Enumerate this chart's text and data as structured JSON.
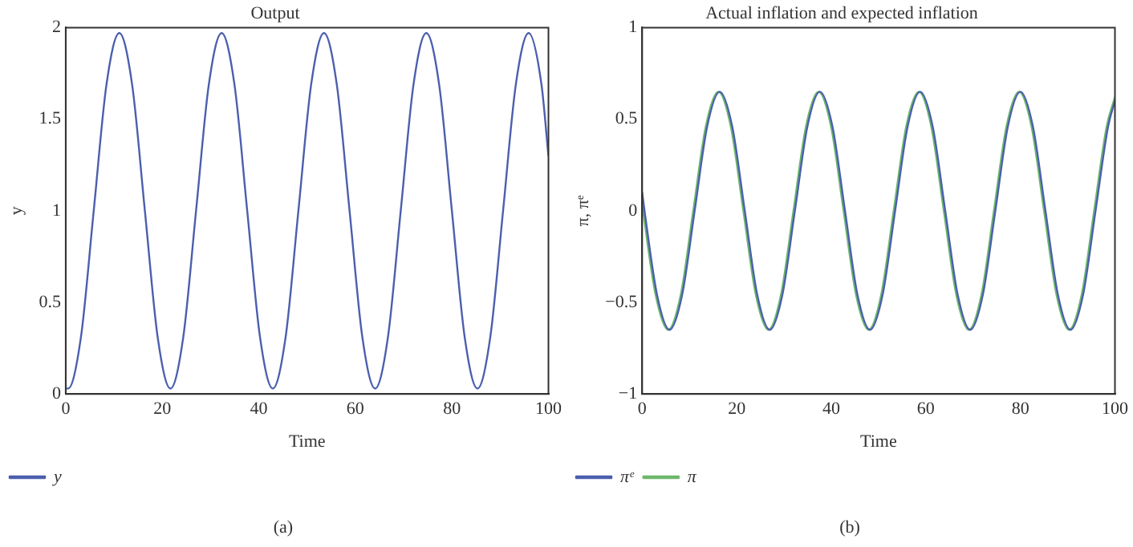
{
  "chart_data": [
    {
      "type": "line",
      "title": "Output",
      "xlabel": "Time",
      "ylabel": "y",
      "xlim": [
        0,
        100
      ],
      "xticks": [
        0,
        20,
        40,
        60,
        80,
        100
      ],
      "ylim": [
        0,
        2
      ],
      "yticks": [
        0,
        0.5,
        1,
        1.5,
        2
      ],
      "grid": false,
      "legend": "bottom left",
      "annotations": [
        "(a)"
      ],
      "series": [
        {
          "name": "y",
          "color": "#4b5fae",
          "x": [
            0,
            0.5,
            3.15,
            5.8,
            8.45,
            11.1,
            13.75,
            16.4,
            19.05,
            21.7,
            24.35,
            27,
            29.65,
            32.3,
            34.95,
            37.6,
            40.25,
            42.9,
            45.55,
            48.2,
            50.85,
            53.5,
            56.15,
            58.8,
            61.45,
            64.1,
            66.75,
            69.4,
            72.05,
            74.7,
            77.35,
            80,
            82.65,
            85.3,
            87.95,
            90.6,
            93.25,
            95.9,
            98.55,
            100
          ],
          "values": [
            0.03,
            0.03,
            0.31,
            1,
            1.69,
            1.97,
            1.69,
            1,
            0.31,
            0.03,
            0.31,
            1,
            1.69,
            1.97,
            1.69,
            1,
            0.31,
            0.03,
            0.31,
            1,
            1.69,
            1.97,
            1.69,
            1,
            0.31,
            0.03,
            0.31,
            1,
            1.69,
            1.97,
            1.69,
            1,
            0.31,
            0.03,
            0.31,
            1,
            1.69,
            1.97,
            1.69,
            1.3
          ]
        }
      ]
    },
    {
      "type": "line",
      "title": "Actual inflation and expected inflation",
      "xlabel": "Time",
      "ylabel": "π, πᵉ",
      "xlim": [
        0,
        100
      ],
      "xticks": [
        0,
        20,
        40,
        60,
        80,
        100
      ],
      "ylim": [
        -1,
        1
      ],
      "yticks": [
        {
          "value": -1,
          "label": "−1"
        },
        {
          "value": -0.5,
          "label": "−0.5"
        },
        0,
        0.5,
        1
      ],
      "grid": false,
      "legend": "bottom left",
      "annotations": [
        "(b)"
      ],
      "series": [
        {
          "name": "πᵉ",
          "color": "#4b5fae",
          "x": [
            0,
            0.5,
            3.15,
            5.8,
            8.45,
            11.1,
            13.75,
            16.4,
            19.05,
            21.7,
            24.35,
            27,
            29.65,
            32.3,
            34.95,
            37.6,
            40.25,
            42.9,
            45.55,
            48.2,
            50.85,
            53.5,
            56.15,
            58.8,
            61.45,
            64.1,
            66.75,
            69.4,
            72.05,
            74.7,
            77.35,
            80,
            82.65,
            85.3,
            87.95,
            90.6,
            93.25,
            95.9,
            98.55,
            100
          ],
          "values": [
            0.1,
            0,
            -0.46,
            -0.65,
            -0.46,
            0,
            0.46,
            0.65,
            0.46,
            0,
            -0.46,
            -0.65,
            -0.46,
            0,
            0.46,
            0.65,
            0.46,
            0,
            -0.46,
            -0.65,
            -0.46,
            0,
            0.46,
            0.65,
            0.46,
            0,
            -0.46,
            -0.65,
            -0.46,
            0,
            0.46,
            0.65,
            0.46,
            0,
            -0.46,
            -0.65,
            -0.46,
            0,
            0.46,
            0.6
          ]
        },
        {
          "name": "π",
          "color": "#6cb86c",
          "x": [
            0,
            0.2,
            2.85,
            5.5,
            8.15,
            10.8,
            13.45,
            16.1,
            18.75,
            21.4,
            24.05,
            26.7,
            29.35,
            32,
            34.65,
            37.3,
            39.95,
            42.6,
            45.25,
            47.9,
            50.55,
            53.2,
            55.85,
            58.5,
            61.15,
            63.8,
            66.45,
            69.1,
            71.75,
            74.4,
            77.05,
            79.7,
            82.35,
            85,
            87.65,
            90.3,
            92.95,
            95.6,
            98.25,
            100
          ],
          "values": [
            0.04,
            0,
            -0.46,
            -0.65,
            -0.46,
            0,
            0.46,
            0.65,
            0.46,
            0,
            -0.46,
            -0.65,
            -0.46,
            0,
            0.46,
            0.65,
            0.46,
            0,
            -0.46,
            -0.65,
            -0.46,
            0,
            0.46,
            0.65,
            0.46,
            0,
            -0.46,
            -0.65,
            -0.46,
            0,
            0.46,
            0.65,
            0.46,
            0,
            -0.46,
            -0.65,
            -0.46,
            0,
            0.46,
            0.62
          ]
        }
      ]
    }
  ]
}
